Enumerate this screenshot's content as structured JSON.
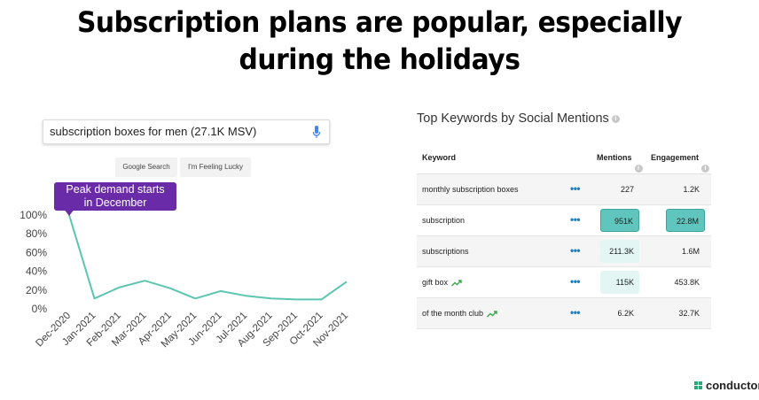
{
  "title": {
    "line1": "Subscription plans are popular, especially",
    "line2": "during the holidays"
  },
  "search": {
    "query": "subscription boxes for men (27.1K MSV)",
    "icon": "mic-icon",
    "buttons": [
      "Google Search",
      "I'm Feeling Lucky"
    ]
  },
  "chart_data": {
    "type": "line",
    "x": [
      "Dec-2020",
      "Jan-2021",
      "Feb-2021",
      "Mar-2021",
      "Apr-2021",
      "May-2021",
      "Jun-2021",
      "Jul-2021",
      "Aug-2021",
      "Sep-2021",
      "Oct-2021",
      "Nov-2021"
    ],
    "values": [
      100,
      11,
      23,
      30,
      22,
      11,
      19,
      14,
      11,
      10,
      10,
      29
    ],
    "ylim": [
      0,
      100
    ],
    "yticks": [
      "0%",
      "20%",
      "40%",
      "60%",
      "80%",
      "100%"
    ],
    "color": "#5cc5b0",
    "annotation": {
      "line1": "Peak demand starts",
      "line2": "in December",
      "color": "#6a2ba8"
    }
  },
  "table": {
    "title": "Top Keywords by Social Mentions",
    "headers": {
      "keyword": "Keyword",
      "mentions": "Mentions",
      "engagement": "Engagement"
    },
    "rows": [
      {
        "keyword": "monthly subscription boxes",
        "mentions": "227",
        "engagement": "1.2K",
        "trend": false,
        "m_hl": "none",
        "e_hl": "none"
      },
      {
        "keyword": "subscription",
        "mentions": "951K",
        "engagement": "22.8M",
        "trend": false,
        "m_hl": "strong",
        "e_hl": "strong"
      },
      {
        "keyword": "subscriptions",
        "mentions": "211.3K",
        "engagement": "1.6M",
        "trend": false,
        "m_hl": "light",
        "e_hl": "none"
      },
      {
        "keyword": "gift box",
        "mentions": "115K",
        "engagement": "453.8K",
        "trend": true,
        "m_hl": "light",
        "e_hl": "none"
      },
      {
        "keyword": "of the month club",
        "mentions": "6.2K",
        "engagement": "32.7K",
        "trend": true,
        "m_hl": "none",
        "e_hl": "none"
      }
    ],
    "dots": "•••"
  },
  "logo": {
    "text": "conductor"
  }
}
